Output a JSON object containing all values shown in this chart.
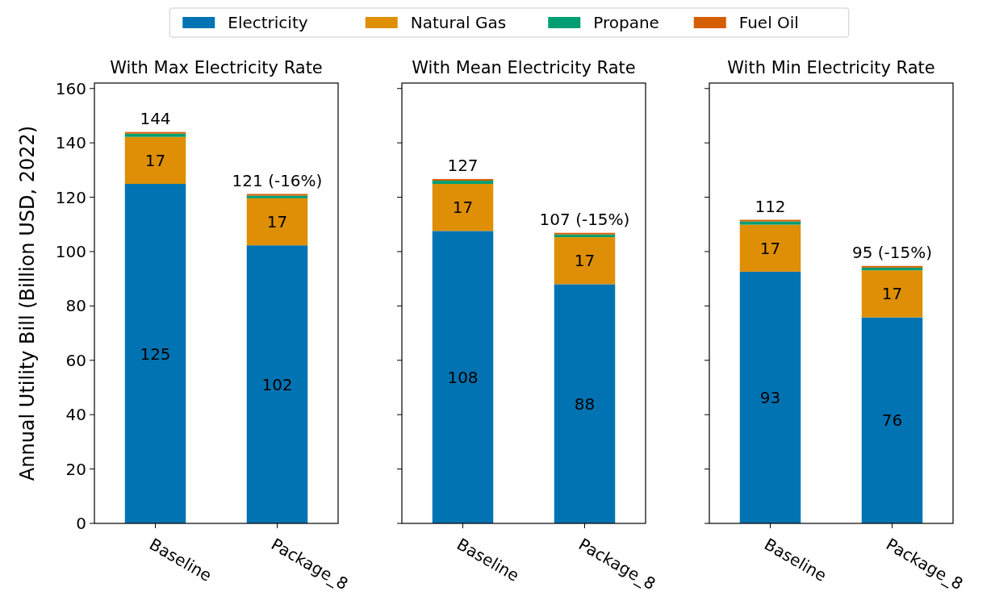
{
  "chart_data": [
    {
      "type": "bar",
      "title": "With Max Electricity Rate",
      "ylabel": "Annual Utility Bill (Billion USD, 2022)",
      "categories": [
        "Baseline",
        "Package_8"
      ],
      "stacked": true,
      "ylim": [
        0,
        162
      ],
      "yticks": [
        0,
        20,
        40,
        60,
        80,
        100,
        120,
        140,
        160
      ],
      "legend": "top",
      "grid": false,
      "series": [
        {
          "name": "Electricity",
          "color": "#0173b2",
          "values": [
            124.9,
            102.3
          ],
          "value_labels": [
            "125",
            "102"
          ]
        },
        {
          "name": "Natural Gas",
          "color": "#de8f05",
          "values": [
            17.3,
            17.3
          ],
          "value_labels": [
            "17",
            "17"
          ]
        },
        {
          "name": "Propane",
          "color": "#029e73",
          "values": [
            1.2,
            1.0
          ]
        },
        {
          "name": "Fuel Oil",
          "color": "#d55e00",
          "values": [
            0.6,
            0.6
          ]
        }
      ],
      "totals": [
        "144",
        "121 (-16%)"
      ]
    },
    {
      "type": "bar",
      "title": "With Mean Electricity Rate",
      "categories": [
        "Baseline",
        "Package_8"
      ],
      "stacked": true,
      "ylim": [
        0,
        162
      ],
      "yticks": [
        {
          "value": 0,
          "label": null
        },
        {
          "value": 20,
          "label": null
        },
        {
          "value": 40,
          "label": null
        },
        {
          "value": 60,
          "label": null
        },
        {
          "value": 80,
          "label": null
        },
        {
          "value": 100,
          "label": null
        },
        {
          "value": 120,
          "label": null
        },
        {
          "value": 140,
          "label": null
        },
        {
          "value": 160,
          "label": null
        }
      ],
      "tick_labels": "x",
      "grid": false,
      "series": [
        {
          "color": "#0173b2",
          "values": [
            107.6,
            88.0
          ],
          "value_labels": [
            "108",
            "88"
          ]
        },
        {
          "color": "#de8f05",
          "values": [
            17.3,
            17.3
          ],
          "value_labels": [
            "17",
            "17"
          ]
        },
        {
          "color": "#029e73",
          "values": [
            1.2,
            1.0
          ]
        },
        {
          "color": "#d55e00",
          "values": [
            0.6,
            0.6
          ]
        }
      ],
      "totals": [
        "127",
        "107 (-15%)"
      ]
    },
    {
      "type": "bar",
      "title": "With Min Electricity Rate",
      "categories": [
        "Baseline",
        "Package_8"
      ],
      "stacked": true,
      "ylim": [
        0,
        162
      ],
      "yticks": [
        {
          "value": 0,
          "label": null
        },
        {
          "value": 20,
          "label": null
        },
        {
          "value": 40,
          "label": null
        },
        {
          "value": 60,
          "label": null
        },
        {
          "value": 80,
          "label": null
        },
        {
          "value": 100,
          "label": null
        },
        {
          "value": 120,
          "label": null
        },
        {
          "value": 140,
          "label": null
        },
        {
          "value": 160,
          "label": null
        }
      ],
      "tick_labels": "x",
      "grid": false,
      "series": [
        {
          "color": "#0173b2",
          "values": [
            92.6,
            75.8
          ],
          "value_labels": [
            "93",
            "76"
          ]
        },
        {
          "color": "#de8f05",
          "values": [
            17.3,
            17.3
          ],
          "value_labels": [
            "17",
            "17"
          ]
        },
        {
          "color": "#029e73",
          "values": [
            1.2,
            1.0
          ]
        },
        {
          "color": "#d55e00",
          "values": [
            0.6,
            0.6
          ]
        }
      ],
      "totals": [
        "112",
        "95 (-15%)"
      ]
    }
  ]
}
